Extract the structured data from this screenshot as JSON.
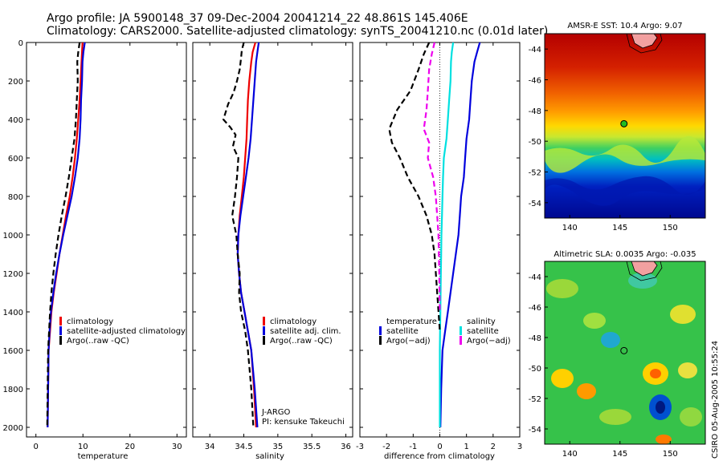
{
  "header": {
    "line1": "Argo profile: JA 5900148_37 09-Dec-2004 20041214_22 48.861S 145.406E",
    "line2": "Climatology: CARS2000. Satellite-adjusted climatology: synTS_20041210.nc (0.01d later)"
  },
  "footer": {
    "stamp": "CSIRO 05-Aug-2005 10:55:24"
  },
  "colors": {
    "red": "#ee0000",
    "blue": "#0000dd",
    "black": "#000000",
    "cyan": "#00e0e0",
    "magenta": "#ee00ee"
  },
  "chart_data": [
    {
      "type": "line",
      "id": "temperature",
      "xlabel": "temperature",
      "xlim": [
        -2,
        32
      ],
      "ylim": [
        0,
        2050
      ],
      "xticks": [
        0,
        10,
        20,
        30
      ],
      "yticks": [
        0,
        200,
        400,
        600,
        800,
        1000,
        1200,
        1400,
        1600,
        1800,
        2000
      ],
      "legend": [
        "climatology",
        "satellite-adjusted climatology",
        "Argo(..raw -QC)"
      ],
      "series": [
        {
          "name": "climatology",
          "color": "#ee0000",
          "dash": "solid",
          "x": [
            9.9,
            9.8,
            9.7,
            9.5,
            9.3,
            9.0,
            8.7,
            8.3,
            7.8,
            7.2,
            6.4,
            5.7,
            5.0,
            4.4,
            3.8,
            3.3,
            3.0,
            2.7,
            2.6,
            2.5
          ],
          "y": [
            0,
            50,
            100,
            200,
            300,
            400,
            500,
            600,
            700,
            800,
            900,
            1000,
            1100,
            1200,
            1300,
            1400,
            1500,
            1600,
            1800,
            2000
          ]
        },
        {
          "name": "satellite-adjusted climatology",
          "color": "#0000dd",
          "dash": "solid",
          "x": [
            10.4,
            10.1,
            9.9,
            9.8,
            9.6,
            9.5,
            9.3,
            8.9,
            8.3,
            7.6,
            6.7,
            5.8,
            5.0,
            4.3,
            3.7,
            3.2,
            2.9,
            2.7,
            2.6,
            2.5
          ],
          "y": [
            0,
            50,
            100,
            200,
            300,
            400,
            500,
            600,
            700,
            800,
            900,
            1000,
            1100,
            1200,
            1300,
            1400,
            1500,
            1600,
            1800,
            2000
          ]
        },
        {
          "name": "Argo(..raw -QC)",
          "color": "#000000",
          "dash": "dash",
          "x": [
            9.3,
            9.0,
            8.8,
            8.9,
            8.7,
            8.5,
            8.2,
            7.6,
            7.0,
            6.3,
            5.5,
            4.8,
            4.2,
            3.7,
            3.3,
            3.0,
            2.8,
            2.6,
            2.5,
            2.4
          ],
          "y": [
            0,
            50,
            100,
            200,
            300,
            400,
            500,
            600,
            700,
            800,
            900,
            1000,
            1100,
            1200,
            1300,
            1400,
            1500,
            1600,
            1800,
            2000
          ]
        }
      ]
    },
    {
      "type": "line",
      "id": "salinity",
      "xlabel": "salinity",
      "xlim": [
        33.75,
        36.1
      ],
      "ylim": [
        0,
        2050
      ],
      "xticks": [
        34,
        34.5,
        35,
        35.5,
        36
      ],
      "legend": [
        "climatology",
        "satellite adj. clim.",
        "Argo(..raw -QC)"
      ],
      "annotation": [
        "J-ARGO",
        "PI: kensuke Takeuchi"
      ],
      "series": [
        {
          "name": "climatology",
          "color": "#ee0000",
          "dash": "solid",
          "x": [
            34.67,
            34.63,
            34.61,
            34.58,
            34.56,
            34.55,
            34.54,
            34.52,
            34.5,
            34.47,
            34.44,
            34.42,
            34.41,
            34.43,
            34.46,
            34.51,
            34.56,
            34.61,
            34.65,
            34.68
          ],
          "y": [
            0,
            50,
            100,
            200,
            300,
            400,
            500,
            600,
            700,
            800,
            900,
            1000,
            1100,
            1200,
            1300,
            1400,
            1500,
            1600,
            1800,
            2000
          ]
        },
        {
          "name": "satellite adj. clim.",
          "color": "#0000dd",
          "dash": "solid",
          "x": [
            34.72,
            34.7,
            34.68,
            34.66,
            34.64,
            34.62,
            34.6,
            34.57,
            34.53,
            34.49,
            34.45,
            34.42,
            34.41,
            34.43,
            34.46,
            34.51,
            34.56,
            34.61,
            34.66,
            34.7
          ],
          "y": [
            0,
            50,
            100,
            200,
            300,
            400,
            500,
            600,
            700,
            800,
            900,
            1000,
            1100,
            1200,
            1300,
            1400,
            1500,
            1600,
            1800,
            2000
          ]
        },
        {
          "name": "Argo(..raw -QC)",
          "color": "#000000",
          "dash": "dash",
          "x": [
            34.5,
            34.47,
            34.46,
            34.44,
            34.4,
            34.35,
            34.27,
            34.2,
            34.3,
            34.38,
            34.34,
            34.42,
            34.4,
            34.37,
            34.33,
            34.39,
            34.41,
            34.44,
            34.43,
            34.46,
            34.52,
            34.56,
            34.61,
            34.64
          ],
          "y": [
            0,
            40,
            80,
            140,
            200,
            260,
            320,
            400,
            440,
            480,
            540,
            600,
            700,
            800,
            900,
            1000,
            1100,
            1200,
            1300,
            1400,
            1500,
            1600,
            1800,
            2000
          ]
        }
      ]
    },
    {
      "type": "line",
      "id": "difference",
      "xlabel": "difference from climatology",
      "xlim": [
        -3,
        3
      ],
      "ylim": [
        0,
        2050
      ],
      "xticks": [
        -3,
        -2,
        -1,
        0,
        1,
        2,
        3
      ],
      "legend_left_title": "temperature",
      "legend_left": [
        "satellite",
        "Argo(−adj)"
      ],
      "legend_right_title": "salinity",
      "legend_right": [
        "satellite",
        "Argo(−adj)"
      ],
      "series": [
        {
          "name": "temperature satellite",
          "color": "#0000dd",
          "dash": "solid",
          "x": [
            1.5,
            1.4,
            1.3,
            1.2,
            1.15,
            1.1,
            1.0,
            0.95,
            0.9,
            0.8,
            0.75,
            0.7,
            0.6,
            0.5,
            0.4,
            0.3,
            0.2,
            0.1,
            0.05,
            0.02
          ],
          "y": [
            0,
            50,
            100,
            200,
            300,
            400,
            500,
            600,
            700,
            800,
            900,
            1000,
            1100,
            1200,
            1300,
            1400,
            1500,
            1600,
            1800,
            2000
          ]
        },
        {
          "name": "salinity satellite",
          "color": "#00e0e0",
          "dash": "solid",
          "x": [
            0.5,
            0.45,
            0.42,
            0.4,
            0.35,
            0.3,
            0.25,
            0.15,
            0.12,
            0.1,
            0.08,
            0.06,
            0.05,
            0.04,
            0.03,
            0.02,
            0.01,
            0.0,
            0.0,
            0.0
          ],
          "y": [
            0,
            50,
            100,
            200,
            300,
            400,
            500,
            600,
            700,
            800,
            900,
            1000,
            1100,
            1200,
            1300,
            1400,
            1500,
            1600,
            1800,
            2000
          ]
        },
        {
          "name": "temperature Argo(-adj)",
          "color": "#000000",
          "dash": "dash",
          "x": [
            -0.4,
            -0.6,
            -0.8,
            -1.1,
            -1.6,
            -1.9,
            -1.8,
            -1.5,
            -1.2,
            -0.8,
            -0.5,
            -0.3,
            -0.2,
            -0.1,
            0.0
          ],
          "y": [
            0,
            60,
            140,
            250,
            350,
            450,
            520,
            600,
            700,
            800,
            900,
            1000,
            1100,
            1300,
            1500
          ]
        },
        {
          "name": "salinity Argo(-adj)",
          "color": "#ee00ee",
          "dash": "dash",
          "x": [
            -0.2,
            -0.3,
            -0.4,
            -0.45,
            -0.5,
            -0.6,
            -0.4,
            -0.45,
            -0.25,
            -0.15,
            -0.1,
            -0.05,
            -0.02,
            0.0
          ],
          "y": [
            0,
            60,
            140,
            250,
            350,
            450,
            520,
            600,
            700,
            800,
            900,
            1000,
            1200,
            1400
          ]
        }
      ]
    },
    {
      "type": "heatmap",
      "id": "sst-map",
      "title": "AMSR-E SST: 10.4 Argo: 9.07",
      "xlim": [
        137.5,
        153.5
      ],
      "ylim": [
        -55,
        -43
      ],
      "xticks": [
        140,
        145,
        150
      ],
      "yticks": [
        -44,
        -46,
        -48,
        -50,
        -52,
        -54
      ],
      "point": {
        "x": 145.4,
        "y": -48.86
      }
    },
    {
      "type": "heatmap",
      "id": "sla-map",
      "title": "Altimetric SLA: 0.0035 Argo: -0.035",
      "xlim": [
        137.5,
        153.5
      ],
      "ylim": [
        -55,
        -43
      ],
      "xticks": [
        140,
        145,
        150
      ],
      "yticks": [
        -44,
        -46,
        -48,
        -50,
        -52,
        -54
      ],
      "point": {
        "x": 145.4,
        "y": -48.86
      }
    }
  ]
}
